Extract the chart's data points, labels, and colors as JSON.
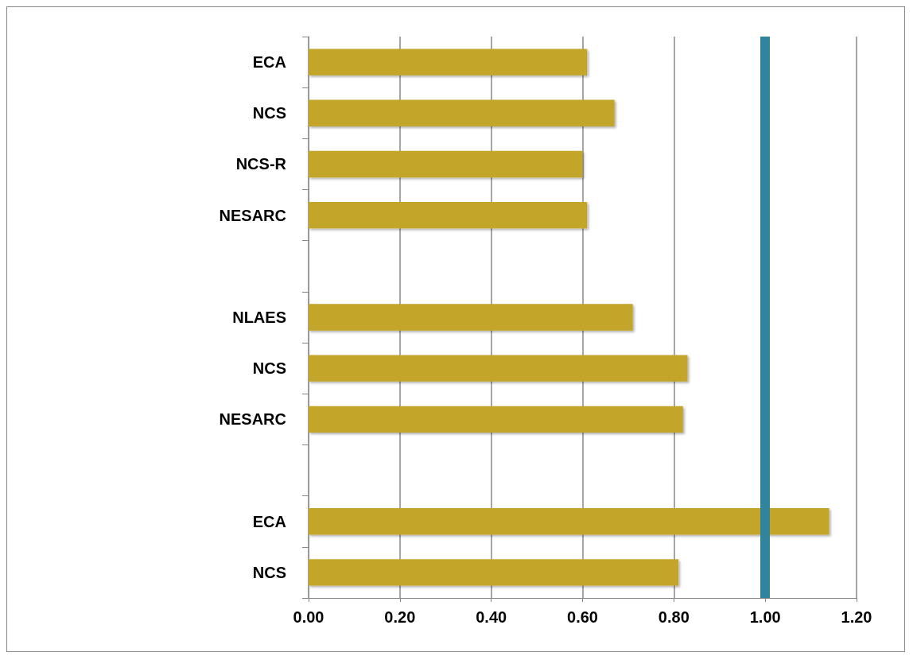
{
  "chart_data": {
    "type": "bar",
    "orientation": "horizontal",
    "categories": [
      "ECA",
      "NCS",
      "NCS-R",
      "NESARC",
      null,
      "NLAES",
      "NCS",
      "NESARC",
      null,
      "ECA",
      "NCS"
    ],
    "values": [
      0.61,
      0.67,
      0.6,
      0.61,
      null,
      0.71,
      0.83,
      0.82,
      null,
      1.14,
      0.81
    ],
    "color": "#c3a52a",
    "xlim": [
      0,
      1.2
    ],
    "xticks": [
      {
        "value": 0,
        "label": "0.00"
      },
      {
        "value": 0.2,
        "label": "0.20"
      },
      {
        "value": 0.4,
        "label": "0.40"
      },
      {
        "value": 0.6,
        "label": "0.60"
      },
      {
        "value": 0.8,
        "label": "0.80"
      },
      {
        "value": 1.0,
        "label": "1.00"
      },
      {
        "value": 1.2,
        "label": "1.20"
      }
    ],
    "grid": "x",
    "ref_lines": [
      {
        "axis": "x",
        "value": 1.0,
        "color": "#31849b"
      }
    ]
  }
}
